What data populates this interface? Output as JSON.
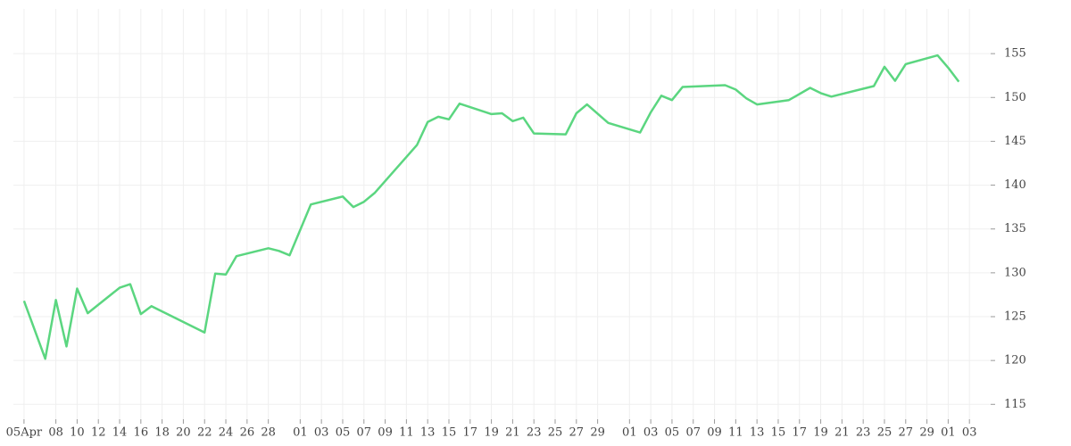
{
  "chart_data": {
    "type": "line",
    "x": [
      0,
      2,
      3,
      4,
      5,
      6,
      9,
      10,
      11,
      12,
      17,
      18,
      19,
      20,
      23,
      24,
      25,
      27,
      30,
      31,
      32,
      33,
      37,
      38,
      39,
      40,
      41,
      44,
      45,
      46,
      47,
      48,
      51,
      52,
      53,
      55,
      58,
      59,
      60,
      61,
      62,
      66,
      67,
      68,
      69,
      72,
      74,
      75,
      76,
      80,
      81,
      82,
      83,
      86,
      87,
      88
    ],
    "series": [
      {
        "color": "#5bd680",
        "values": [
          126.8,
          120.2,
          126.9,
          121.6,
          128.2,
          125.4,
          128.3,
          128.7,
          125.3,
          126.2,
          123.2,
          129.9,
          129.8,
          131.9,
          132.8,
          132.5,
          132.0,
          137.8,
          138.7,
          137.5,
          138.1,
          139.1,
          144.6,
          147.2,
          147.8,
          147.5,
          149.3,
          148.1,
          148.2,
          147.3,
          147.7,
          145.9,
          145.8,
          148.2,
          149.2,
          147.1,
          146.0,
          148.3,
          150.2,
          149.7,
          151.2,
          151.4,
          150.9,
          149.9,
          149.2,
          149.7,
          151.1,
          150.5,
          150.1,
          151.3,
          153.5,
          151.9,
          153.8,
          154.8,
          153.4,
          151.8
        ]
      }
    ],
    "xlim": [
      -1,
      91
    ],
    "xticks": [
      {
        "value": 0,
        "label": "05Apr"
      },
      {
        "value": 3,
        "label": "08"
      },
      {
        "value": 5,
        "label": "10"
      },
      {
        "value": 7,
        "label": "12"
      },
      {
        "value": 9,
        "label": "14"
      },
      {
        "value": 11,
        "label": "16"
      },
      {
        "value": 13,
        "label": "18"
      },
      {
        "value": 15,
        "label": "20"
      },
      {
        "value": 17,
        "label": "22"
      },
      {
        "value": 19,
        "label": "24"
      },
      {
        "value": 21,
        "label": "26"
      },
      {
        "value": 23,
        "label": "28"
      },
      {
        "value": 26,
        "label": "01"
      },
      {
        "value": 28,
        "label": "03"
      },
      {
        "value": 30,
        "label": "05"
      },
      {
        "value": 32,
        "label": "07"
      },
      {
        "value": 34,
        "label": "09"
      },
      {
        "value": 36,
        "label": "11"
      },
      {
        "value": 38,
        "label": "13"
      },
      {
        "value": 40,
        "label": "15"
      },
      {
        "value": 42,
        "label": "17"
      },
      {
        "value": 44,
        "label": "19"
      },
      {
        "value": 46,
        "label": "21"
      },
      {
        "value": 48,
        "label": "23"
      },
      {
        "value": 50,
        "label": "25"
      },
      {
        "value": 52,
        "label": "27"
      },
      {
        "value": 54,
        "label": "29"
      },
      {
        "value": 57,
        "label": "01"
      },
      {
        "value": 59,
        "label": "03"
      },
      {
        "value": 61,
        "label": "05"
      },
      {
        "value": 63,
        "label": "07"
      },
      {
        "value": 65,
        "label": "09"
      },
      {
        "value": 67,
        "label": "11"
      },
      {
        "value": 69,
        "label": "13"
      },
      {
        "value": 71,
        "label": "15"
      },
      {
        "value": 73,
        "label": "17"
      },
      {
        "value": 75,
        "label": "19"
      },
      {
        "value": 77,
        "label": "21"
      },
      {
        "value": 79,
        "label": "23"
      },
      {
        "value": 81,
        "label": "25"
      },
      {
        "value": 83,
        "label": "27"
      },
      {
        "value": 85,
        "label": "29"
      },
      {
        "value": 87,
        "label": "01"
      },
      {
        "value": 89,
        "label": "03"
      }
    ],
    "ylim": [
      113.3,
      160.1
    ],
    "yticks": [
      115,
      120,
      125,
      130,
      135,
      140,
      145,
      150,
      155
    ],
    "grid": true
  }
}
